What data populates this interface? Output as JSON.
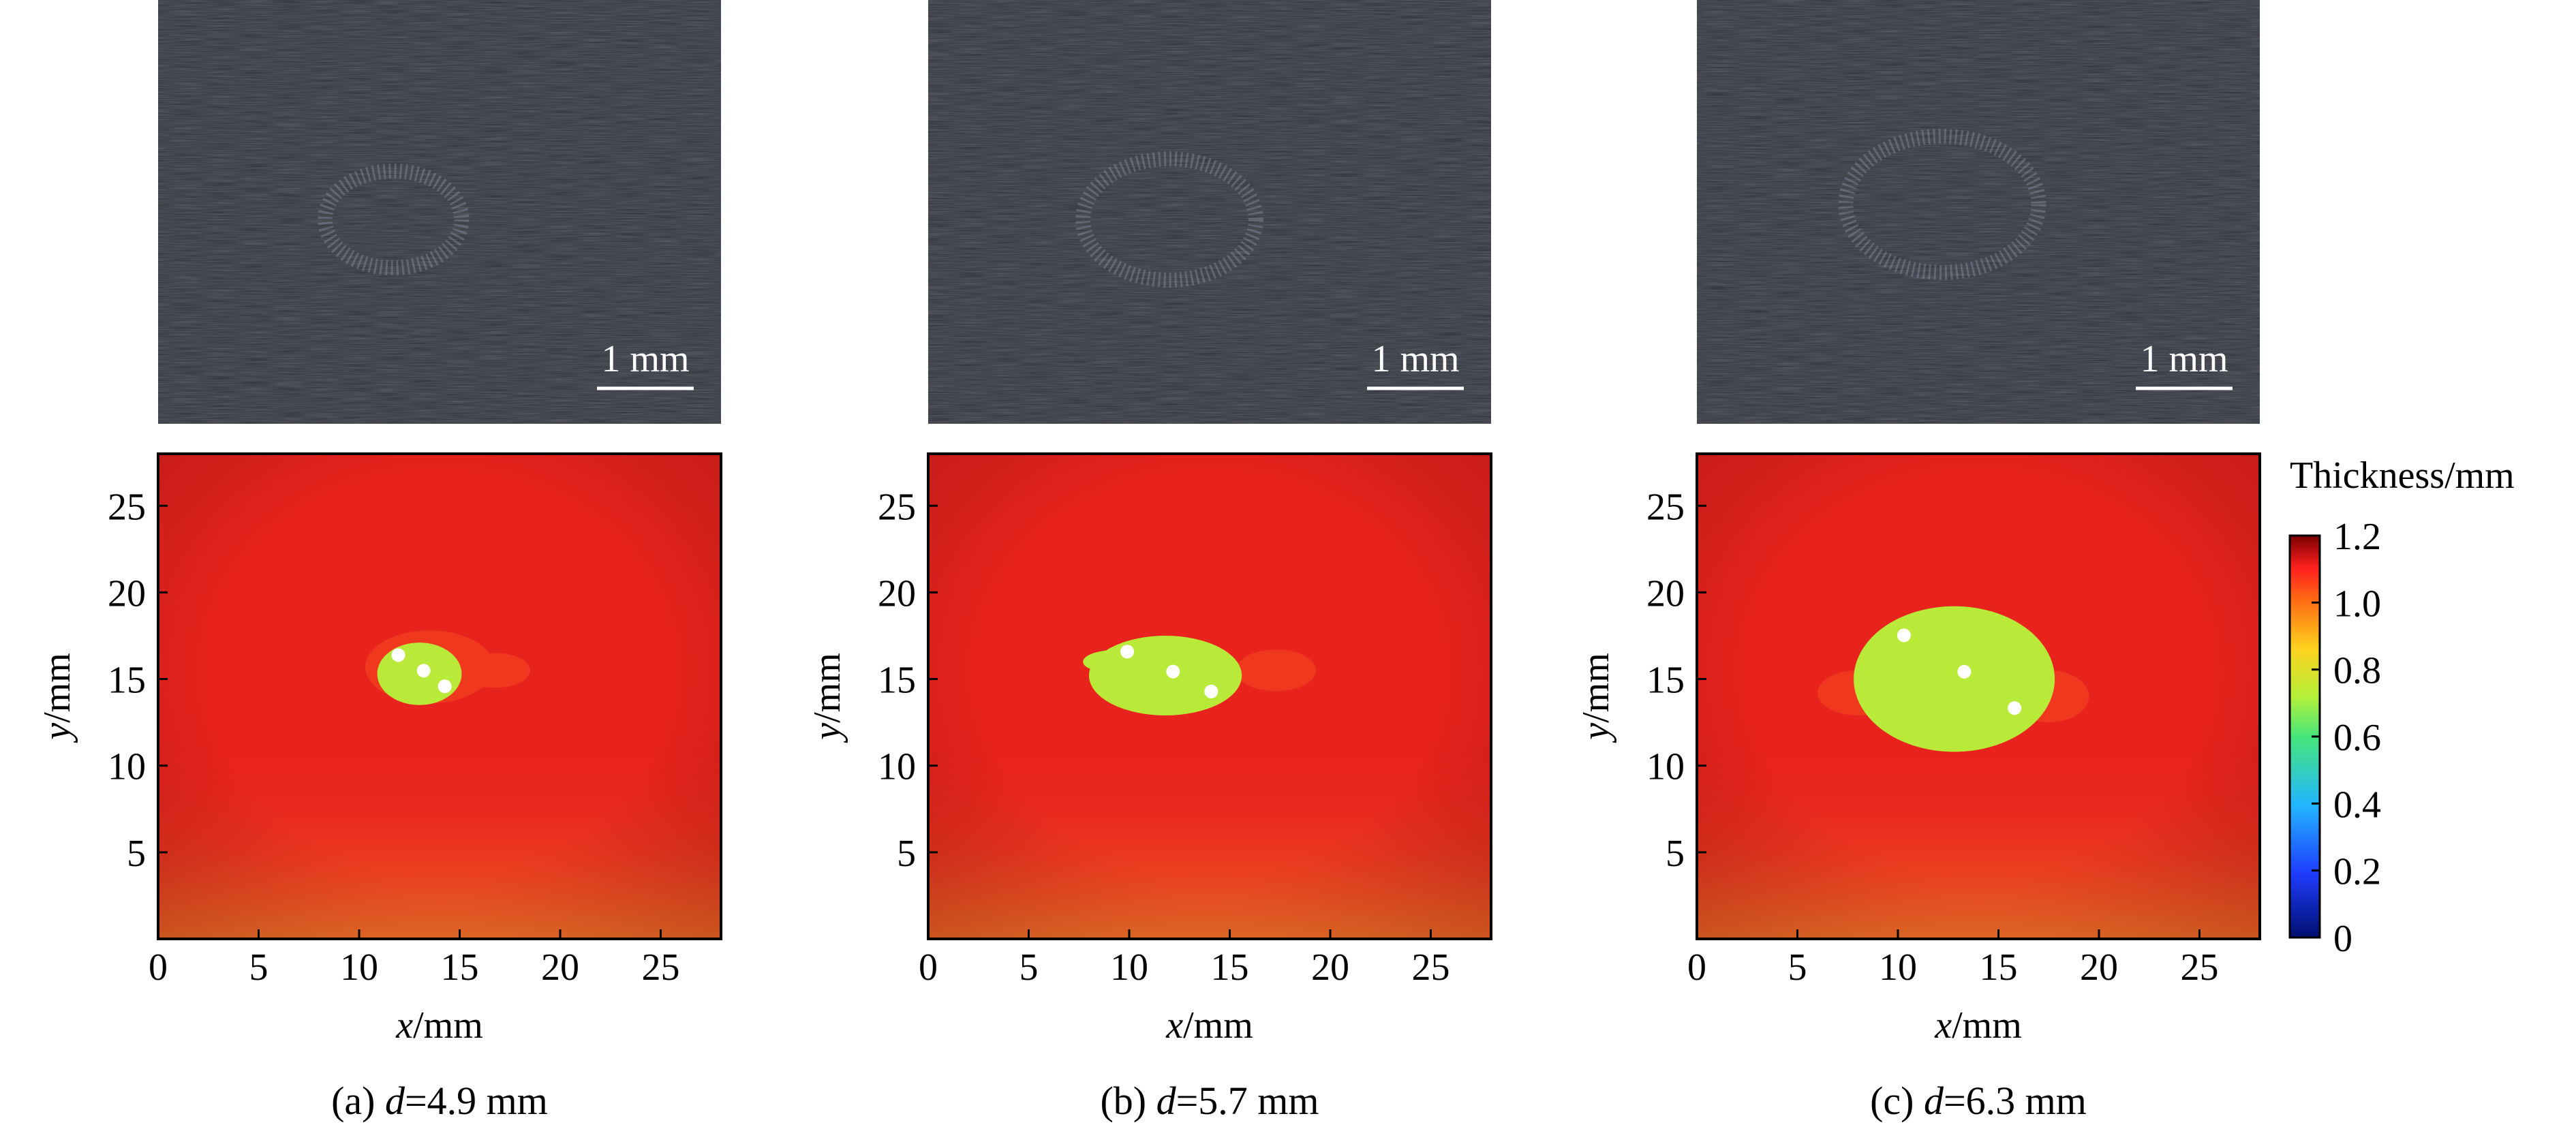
{
  "panels": [
    {
      "id": "a",
      "caption_prefix": "(a) ",
      "caption_var": "d",
      "caption_value": "=4.9 mm",
      "photo_scale_label": "1 mm",
      "photo_ring": {
        "cx": 11.7,
        "cy": 13.5,
        "rx": 3.4,
        "ry": 3.2
      },
      "map_blobs": [
        {
          "material": "Red",
          "cx": 13.5,
          "cy": 15.7,
          "rx": 3.2,
          "ry": 2.1
        },
        {
          "material": "Red",
          "cx": 16.8,
          "cy": 15.5,
          "rx": 1.7,
          "ry": 1.0
        },
        {
          "material": "Green",
          "cx": 13.0,
          "cy": 15.3,
          "rx": 2.1,
          "ry": 1.8
        }
      ]
    },
    {
      "id": "b",
      "caption_prefix": "(b) ",
      "caption_var": "d",
      "caption_value": "=5.7 mm",
      "photo_scale_label": "1 mm",
      "photo_ring": {
        "cx": 12.0,
        "cy": 13.5,
        "rx": 4.3,
        "ry": 4.0
      },
      "map_blobs": [
        {
          "material": "Red",
          "cx": 17.3,
          "cy": 15.5,
          "rx": 2.0,
          "ry": 1.2
        },
        {
          "material": "Green",
          "cx": 11.8,
          "cy": 15.2,
          "rx": 3.8,
          "ry": 2.3
        },
        {
          "material": "Green",
          "cx": 9.5,
          "cy": 16.0,
          "rx": 1.8,
          "ry": 0.7
        }
      ]
    },
    {
      "id": "c",
      "caption_prefix": "(c) ",
      "caption_var": "d",
      "caption_value": "=6.3 mm",
      "photo_scale_label": "1 mm",
      "photo_ring": {
        "cx": 12.2,
        "cy": 14.5,
        "rx": 4.8,
        "ry": 4.5
      },
      "map_blobs": [
        {
          "material": "Red",
          "cx": 17.5,
          "cy": 14.0,
          "rx": 2.0,
          "ry": 1.5
        },
        {
          "material": "Red",
          "cx": 8.0,
          "cy": 14.2,
          "rx": 2.0,
          "ry": 1.3
        },
        {
          "material": "Green",
          "cx": 12.8,
          "cy": 15.0,
          "rx": 5.0,
          "ry": 4.2
        }
      ]
    }
  ],
  "colorbar": {
    "title": "Thickness/mm",
    "ticks": [
      "0",
      "0.2",
      "0.4",
      "0.6",
      "0.8",
      "1.0",
      "1.2"
    ],
    "stops": [
      {
        "t": 0.0,
        "color": "#000f6e"
      },
      {
        "t": 0.16,
        "color": "#1f3cff"
      },
      {
        "t": 0.33,
        "color": "#22b6ff"
      },
      {
        "t": 0.5,
        "color": "#46e67a"
      },
      {
        "t": 0.6,
        "color": "#b6f03a"
      },
      {
        "t": 0.72,
        "color": "#ffd21e"
      },
      {
        "t": 0.84,
        "color": "#ff6a14"
      },
      {
        "t": 0.92,
        "color": "#ff1f1f"
      },
      {
        "t": 1.0,
        "color": "#7a0000"
      }
    ]
  },
  "axes": {
    "x_ticks": [
      "0",
      "5",
      "10",
      "15",
      "20",
      "25"
    ],
    "y_ticks": [
      "5",
      "10",
      "15",
      "20",
      "25"
    ],
    "xlabel_var": "x",
    "xlabel_unit": "/mm",
    "ylabel_var": "y",
    "ylabel_unit": "/mm"
  },
  "colors": {
    "photo_bg": "#2a2c36",
    "map_base": "#e8231d",
    "map_dark": "#c9120f",
    "map_orange": "#f2782a",
    "blob_red": "#f0381f",
    "blob_green": "#b9ea3a",
    "white_spot": "#ffffff",
    "scale_text": "#ffffff"
  },
  "chart_data": {
    "type": "heatmap",
    "title": "",
    "xlabel": "x/mm",
    "ylabel": "y/mm",
    "xlim": [
      0,
      28
    ],
    "ylim": [
      0,
      28
    ],
    "colorbar_range": [
      0,
      1.2
    ],
    "colorbar_label": "Thickness/mm",
    "series": [
      {
        "name": "(a) d=4.9 mm",
        "background_thickness": 1.05,
        "defect_thickness": 0.7
      },
      {
        "name": "(b) d=5.7 mm",
        "background_thickness": 1.05,
        "defect_thickness": 0.7
      },
      {
        "name": "(c) d=6.3 mm",
        "background_thickness": 1.05,
        "defect_thickness": 0.7
      }
    ]
  }
}
